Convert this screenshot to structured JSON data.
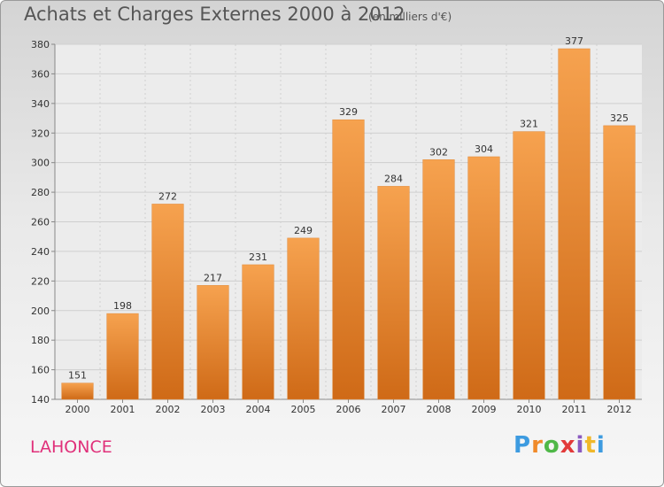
{
  "title": "Achats et Charges Externes 2000 à 2012",
  "unit_note": "(en milliers d'€)",
  "place": "LAHONCE",
  "logo_text": "Proxiti",
  "colors": {
    "bar_light": "#f6a24f",
    "bar_dark": "#cf6a17",
    "grid": "#cfcfcf",
    "axis": "#888888"
  },
  "chart_data": {
    "type": "bar",
    "categories": [
      "2000",
      "2001",
      "2002",
      "2003",
      "2004",
      "2005",
      "2006",
      "2007",
      "2008",
      "2009",
      "2010",
      "2011",
      "2012"
    ],
    "values": [
      151,
      198,
      272,
      217,
      231,
      249,
      329,
      284,
      302,
      304,
      321,
      377,
      325
    ],
    "ylim": [
      140,
      380
    ],
    "yticks": [
      140,
      160,
      180,
      200,
      220,
      240,
      260,
      280,
      300,
      320,
      340,
      360,
      380
    ],
    "grid": true,
    "xlabel": "",
    "ylabel": ""
  }
}
